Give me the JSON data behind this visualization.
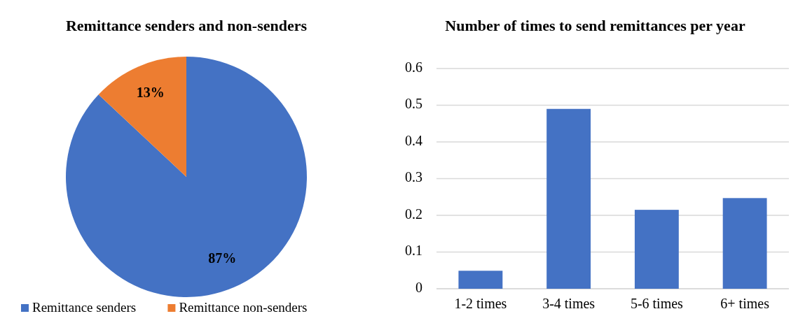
{
  "chart_data": [
    {
      "type": "pie",
      "title": "Remittance senders and non-senders",
      "categories": [
        "Remittance senders",
        "Remittance non-senders"
      ],
      "values": [
        87,
        13
      ],
      "colors": [
        "#4472c4",
        "#ed7d31"
      ],
      "value_labels": [
        "87%",
        "13%"
      ],
      "legend": "bottom"
    },
    {
      "type": "bar",
      "title": "Number of times to send remittances per year",
      "categories": [
        "1-2 times",
        "3-4 times",
        "5-6 times",
        "6+ times"
      ],
      "values": [
        0.049,
        0.49,
        0.215,
        0.247
      ],
      "color": "#4472c4",
      "ylim": [
        0,
        0.6
      ],
      "yticks": [
        0,
        0.1,
        0.2,
        0.3,
        0.4,
        0.5,
        0.6
      ],
      "grid": "y"
    }
  ]
}
